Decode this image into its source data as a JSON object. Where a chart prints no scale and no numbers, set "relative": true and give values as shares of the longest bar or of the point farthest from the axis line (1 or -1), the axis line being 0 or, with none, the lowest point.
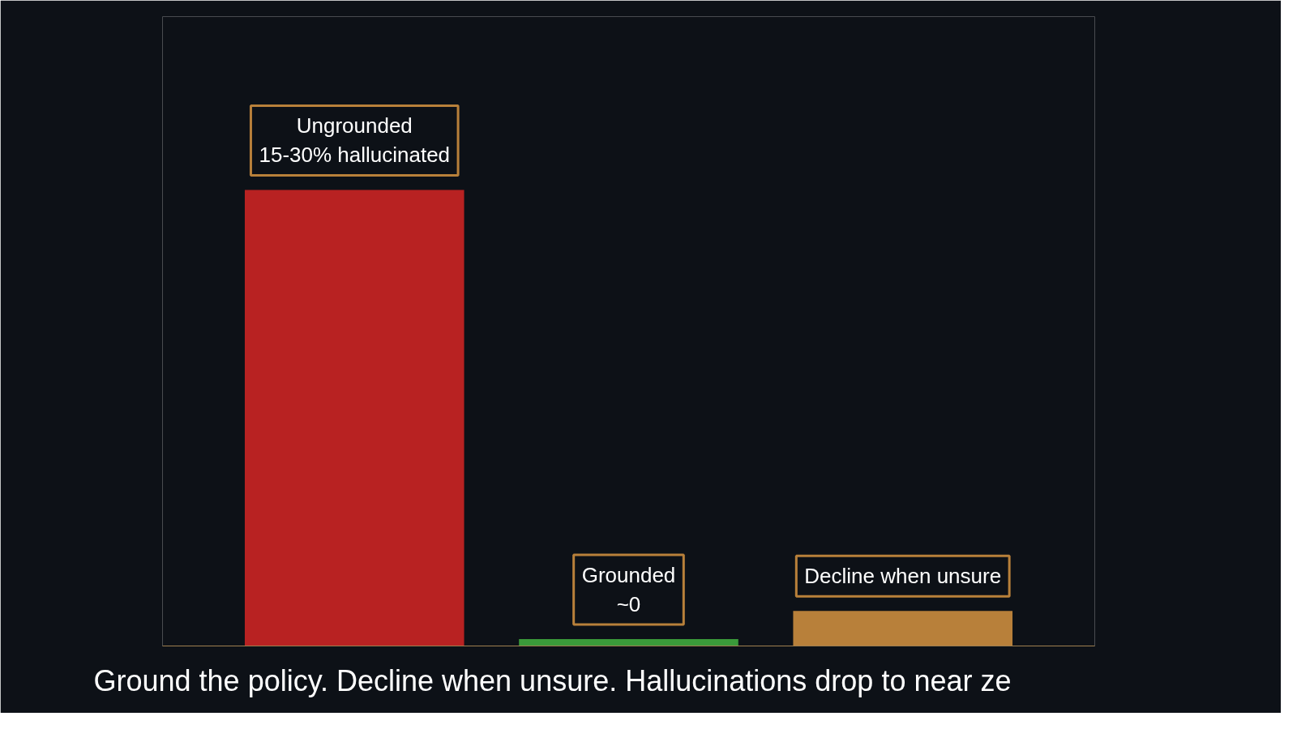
{
  "chart_data": {
    "type": "bar",
    "relative": true,
    "categories": [
      null,
      null,
      null
    ],
    "values": [
      1,
      0.015,
      0.077
    ],
    "colors": [
      "#b82222",
      "#3a9a3a",
      "#b8803a"
    ],
    "annotations": [
      {
        "text": "Ungrounded\n15-30% hallucinated",
        "y": 1
      },
      {
        "text": "Grounded\n~0",
        "y": 0.015
      },
      {
        "text": "Decline when unsure",
        "y": 0.077
      },
      "Ground the policy. Decline when unsure. Hallucinations drop to near ze"
    ],
    "grid": false
  }
}
